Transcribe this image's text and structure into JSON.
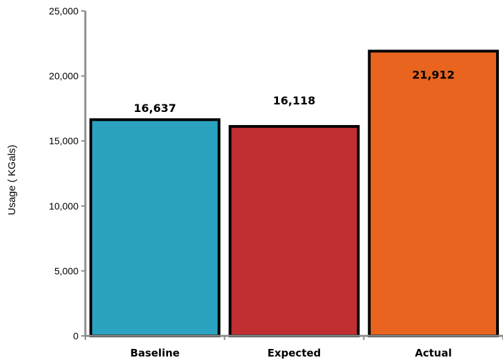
{
  "chart_data": {
    "type": "bar",
    "title": "",
    "xlabel": "",
    "ylabel": "Usage ( KGals)",
    "ylim": [
      0,
      25000
    ],
    "y_ticks": [
      0,
      5000,
      10000,
      15000,
      20000,
      25000
    ],
    "y_tick_labels": [
      "0",
      "5,000",
      "10,000",
      "15,000",
      "20,000",
      "25,000"
    ],
    "categories": [
      "Baseline",
      "Expected",
      "Actual"
    ],
    "values": [
      16637,
      16118,
      21912
    ],
    "value_labels": [
      "16,637",
      "16,118",
      "21,912"
    ],
    "value_label_placement": [
      "above",
      "above",
      "inside-top"
    ],
    "bar_colors": [
      "#2aa2c0",
      "#c22f32",
      "#e8641f"
    ],
    "bar_outline_color": "#000000",
    "axis_color": "#8c8c8c",
    "grid": false,
    "legend": "none"
  }
}
